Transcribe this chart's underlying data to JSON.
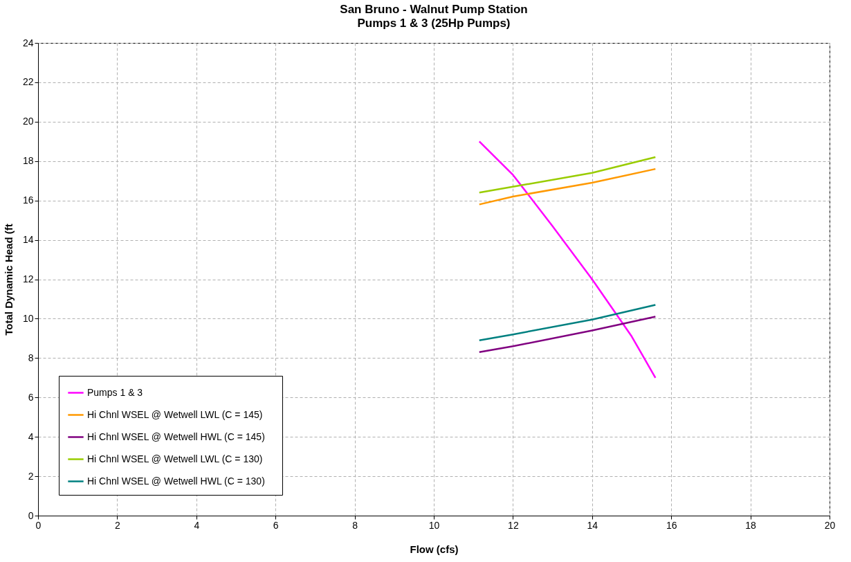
{
  "chart_data": {
    "type": "line",
    "title": "San Bruno - Walnut Pump Station",
    "subtitle": "Pumps 1 & 3 (25Hp Pumps)",
    "xlabel": "Flow (cfs)",
    "ylabel": "Total Dynamic Head (ft",
    "xlim": [
      0,
      20
    ],
    "xticks": [
      0,
      2,
      4,
      6,
      8,
      10,
      12,
      14,
      16,
      18,
      20
    ],
    "ylim": [
      0,
      24
    ],
    "yticks": [
      0,
      2,
      4,
      6,
      8,
      10,
      12,
      14,
      16,
      18,
      20,
      22,
      24
    ],
    "grid": true,
    "legend": "bottom left",
    "marker": "none",
    "line_style": "solid",
    "series": [
      {
        "name": "Pumps 1 & 3",
        "color": "#ff00ff",
        "x": [
          11.15,
          12,
          13,
          14,
          15,
          15.6
        ],
        "values": [
          19.0,
          17.3,
          14.7,
          12.0,
          9.1,
          7.0
        ]
      },
      {
        "name": "Hi Chnl WSEL  @  Wetwell LWL  (C = 145)",
        "color": "#ff9900",
        "x": [
          11.15,
          12,
          14,
          15.6
        ],
        "values": [
          15.8,
          16.2,
          16.9,
          17.6
        ]
      },
      {
        "name": "Hi Chnl WSEL  @  Wetwell HWL  (C = 145)",
        "color": "#800080",
        "x": [
          11.15,
          12,
          14,
          15.6
        ],
        "values": [
          8.3,
          8.6,
          9.4,
          10.1
        ]
      },
      {
        "name": "Hi Chnl WSEL  @  Wetwell LWL  (C = 130)",
        "color": "#99cc00",
        "x": [
          11.15,
          12,
          14,
          15.6
        ],
        "values": [
          16.4,
          16.7,
          17.4,
          18.2
        ]
      },
      {
        "name": "Hi Chnl WSEL  @  Wetwell HWL  (C = 130)",
        "color": "#008080",
        "x": [
          11.15,
          12,
          14,
          15.6
        ],
        "values": [
          8.9,
          9.2,
          9.95,
          10.7
        ]
      }
    ]
  }
}
